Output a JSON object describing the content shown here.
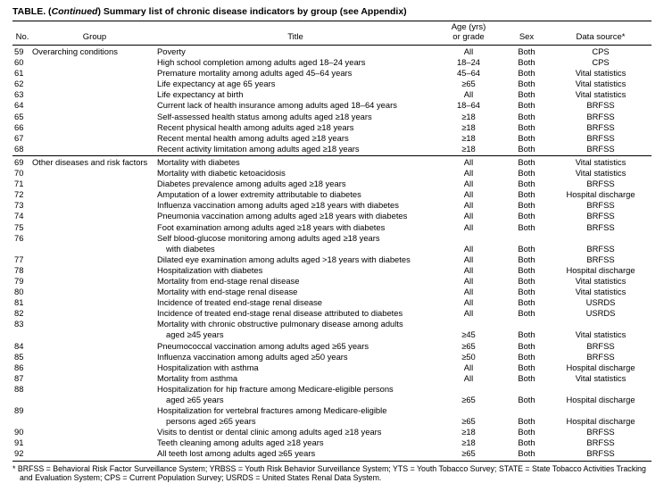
{
  "table": {
    "title_prefix": "TABLE. (",
    "title_continued": "Continued",
    "title_suffix": ") Summary list of chronic disease indicators by group (see Appendix)",
    "columns": {
      "no": "No.",
      "group": "Group",
      "title": "Title",
      "age_line1": "Age (yrs)",
      "age_line2": "or grade",
      "sex": "Sex",
      "source": "Data source*"
    },
    "rows": [
      {
        "no": "59",
        "group": "Overarching conditions",
        "title_lines": [
          "Poverty"
        ],
        "age": "All",
        "sex": "Both",
        "source": "CPS"
      },
      {
        "no": "60",
        "title_lines": [
          "High school completion among adults aged 18–24 years"
        ],
        "age": "18–24",
        "sex": "Both",
        "source": "CPS"
      },
      {
        "no": "61",
        "title_lines": [
          "Premature mortality among adults aged 45–64 years"
        ],
        "age": "45–64",
        "sex": "Both",
        "source": "Vital statistics"
      },
      {
        "no": "62",
        "title_lines": [
          "Life expectancy at age 65 years"
        ],
        "age": "≥65",
        "sex": "Both",
        "source": "Vital statistics"
      },
      {
        "no": "63",
        "title_lines": [
          "Life expectancy at birth"
        ],
        "age": "All",
        "sex": "Both",
        "source": "Vital statistics"
      },
      {
        "no": "64",
        "title_lines": [
          "Current lack of health insurance among adults aged 18–64 years"
        ],
        "age": "18–64",
        "sex": "Both",
        "source": "BRFSS"
      },
      {
        "no": "65",
        "title_lines": [
          "Self-assessed health status among adults aged ≥18 years"
        ],
        "age": "≥18",
        "sex": "Both",
        "source": "BRFSS"
      },
      {
        "no": "66",
        "title_lines": [
          "Recent physical health among adults aged ≥18 years"
        ],
        "age": "≥18",
        "sex": "Both",
        "source": "BRFSS"
      },
      {
        "no": "67",
        "title_lines": [
          "Recent mental health among adults aged ≥18 years"
        ],
        "age": "≥18",
        "sex": "Both",
        "source": "BRFSS"
      },
      {
        "no": "68",
        "title_lines": [
          "Recent activity limitation among adults aged ≥18 years"
        ],
        "age": "≥18",
        "sex": "Both",
        "source": "BRFSS"
      },
      {
        "no": "69",
        "group": "Other diseases and risk factors",
        "group_rule_before": true,
        "title_lines": [
          "Mortality with diabetes"
        ],
        "age": "All",
        "sex": "Both",
        "source": "Vital statistics"
      },
      {
        "no": "70",
        "title_lines": [
          "Mortality with diabetic ketoacidosis"
        ],
        "age": "All",
        "sex": "Both",
        "source": "Vital statistics"
      },
      {
        "no": "71",
        "title_lines": [
          "Diabetes prevalence among adults aged ≥18 years"
        ],
        "age": "All",
        "sex": "Both",
        "source": "BRFSS"
      },
      {
        "no": "72",
        "title_lines": [
          "Amputation of a lower extremity attributable to diabetes"
        ],
        "age": "All",
        "sex": "Both",
        "source": "Hospital discharge"
      },
      {
        "no": "73",
        "title_lines": [
          "Influenza vaccination among adults aged ≥18 years with diabetes"
        ],
        "age": "All",
        "sex": "Both",
        "source": "BRFSS"
      },
      {
        "no": "74",
        "title_lines": [
          "Pneumonia vaccination among adults aged ≥18 years with diabetes"
        ],
        "age": "All",
        "sex": "Both",
        "source": "BRFSS"
      },
      {
        "no": "75",
        "title_lines": [
          "Foot examination among adults aged ≥18 years with diabetes"
        ],
        "age": "All",
        "sex": "Both",
        "source": "BRFSS"
      },
      {
        "no": "76",
        "title_lines": [
          "Self blood-glucose monitoring among adults aged ≥18 years",
          "with diabetes"
        ],
        "age": "All",
        "sex": "Both",
        "source": "BRFSS"
      },
      {
        "no": "77",
        "title_lines": [
          "Dilated eye examination among adults aged >18 years with diabetes"
        ],
        "age": "All",
        "sex": "Both",
        "source": "BRFSS"
      },
      {
        "no": "78",
        "title_lines": [
          "Hospitalization with diabetes"
        ],
        "age": "All",
        "sex": "Both",
        "source": "Hospital discharge"
      },
      {
        "no": "79",
        "title_lines": [
          "Mortality from end-stage renal disease"
        ],
        "age": "All",
        "sex": "Both",
        "source": "Vital statistics"
      },
      {
        "no": "80",
        "title_lines": [
          "Mortality with end-stage renal disease"
        ],
        "age": "All",
        "sex": "Both",
        "source": "Vital statistics"
      },
      {
        "no": "81",
        "title_lines": [
          "Incidence of treated end-stage renal disease"
        ],
        "age": "All",
        "sex": "Both",
        "source": "USRDS"
      },
      {
        "no": "82",
        "title_lines": [
          "Incidence of treated end-stage renal disease attributed to diabetes"
        ],
        "age": "All",
        "sex": "Both",
        "source": "USRDS"
      },
      {
        "no": "83",
        "title_lines": [
          "Mortality with chronic obstructive pulmonary disease among adults",
          "aged ≥45 years"
        ],
        "age": "≥45",
        "sex": "Both",
        "source": "Vital statistics"
      },
      {
        "no": "84",
        "title_lines": [
          "Pneumococcal vaccination among adults aged ≥65 years"
        ],
        "age": "≥65",
        "sex": "Both",
        "source": "BRFSS"
      },
      {
        "no": "85",
        "title_lines": [
          "Influenza vaccination among adults aged ≥50 years"
        ],
        "age": "≥50",
        "sex": "Both",
        "source": "BRFSS"
      },
      {
        "no": "86",
        "title_lines": [
          "Hospitalization with asthma"
        ],
        "age": "All",
        "sex": "Both",
        "source": "Hospital discharge"
      },
      {
        "no": "87",
        "title_lines": [
          "Mortality from asthma"
        ],
        "age": "All",
        "sex": "Both",
        "source": "Vital statistics"
      },
      {
        "no": "88",
        "title_lines": [
          "Hospitalization for hip fracture among Medicare-eligible persons",
          "aged ≥65 years"
        ],
        "age": "≥65",
        "sex": "Both",
        "source": "Hospital discharge"
      },
      {
        "no": "89",
        "title_lines": [
          "Hospitalization for vertebral fractures among Medicare-eligible",
          "persons aged ≥65 years"
        ],
        "age": "≥65",
        "sex": "Both",
        "source": "Hospital discharge"
      },
      {
        "no": "90",
        "title_lines": [
          "Visits to dentist or dental clinic among adults aged ≥18 years"
        ],
        "age": "≥18",
        "sex": "Both",
        "source": "BRFSS"
      },
      {
        "no": "91",
        "title_lines": [
          "Teeth cleaning among adults aged ≥18 years"
        ],
        "age": "≥18",
        "sex": "Both",
        "source": "BRFSS"
      },
      {
        "no": "92",
        "title_lines": [
          "All teeth lost among adults aged ≥65 years"
        ],
        "age": "≥65",
        "sex": "Both",
        "source": "BRFSS"
      }
    ],
    "footnote": "* BRFSS = Behavioral Risk Factor Surveillance System; YRBSS = Youth Risk Behavior Surveillance System; YTS = Youth Tobacco Survey; STATE = State Tobacco Activities Tracking and Evaluation System; CPS = Current Population Survey; USRDS = United States Renal Data System."
  }
}
